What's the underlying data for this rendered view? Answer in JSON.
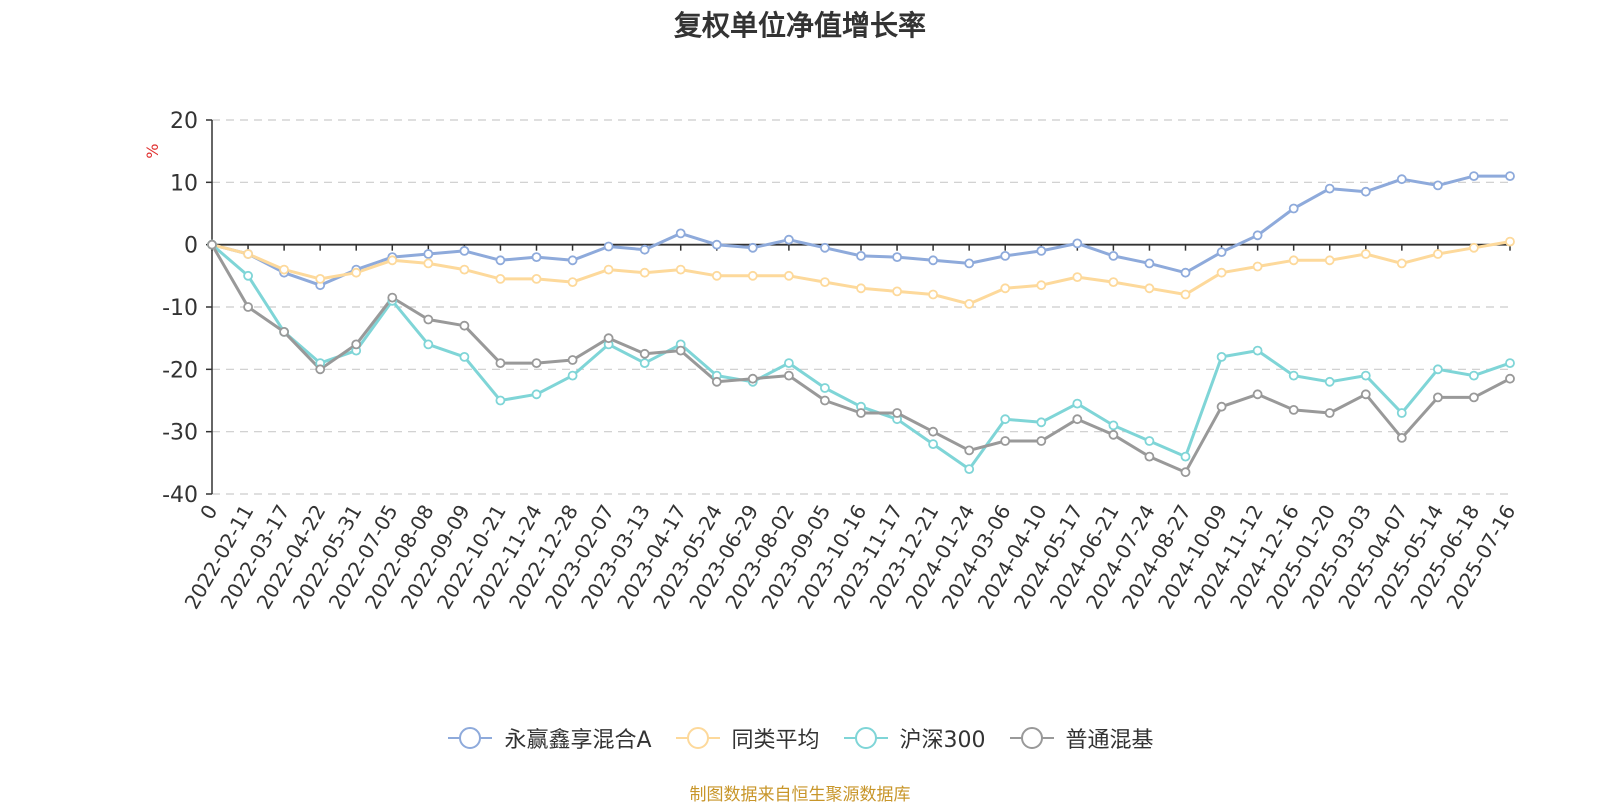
{
  "chart_data": {
    "type": "line",
    "title": "复权单位净值增长率",
    "ylabel": "%",
    "xlabel": "",
    "ylim": [
      -40,
      20
    ],
    "yticks": [
      20,
      10,
      0,
      -10,
      -20,
      -30,
      -40
    ],
    "grid": true,
    "legend_position": "bottom",
    "x_ticks": [
      "0",
      "2022-02-11",
      "2022-03-17",
      "2022-04-22",
      "2022-05-31",
      "2022-07-05",
      "2022-08-08",
      "2022-09-09",
      "2022-10-21",
      "2022-11-24",
      "2022-12-28",
      "2023-02-07",
      "2023-03-13",
      "2023-04-17",
      "2023-05-24",
      "2023-06-29",
      "2023-08-02",
      "2023-09-05",
      "2023-10-16",
      "2023-11-17",
      "2023-12-21",
      "2024-01-24",
      "2024-03-06",
      "2024-04-10",
      "2024-05-17",
      "2024-06-21",
      "2024-07-24",
      "2024-08-27",
      "2024-10-09",
      "2024-11-12",
      "2024-12-16",
      "2025-01-20",
      "2025-03-03",
      "2025-04-07",
      "2025-05-14",
      "2025-06-18",
      "2025-07-16"
    ],
    "series": [
      {
        "name": "永赢鑫享混合A",
        "color": "#8eaadb",
        "values": [
          0,
          -1.5,
          -4.5,
          -6.5,
          -4,
          -2,
          -1.5,
          -1,
          -2.5,
          -2,
          -2.5,
          -0.3,
          -0.8,
          1.8,
          0,
          -0.5,
          0.8,
          -0.5,
          -1.8,
          -2,
          -2.5,
          -3,
          -1.8,
          -1,
          0.2,
          -1.8,
          -3,
          -4.5,
          -1.2,
          1.5,
          5.8,
          9,
          8.5,
          10.5,
          9.5,
          11,
          11
        ]
      },
      {
        "name": "同类平均",
        "color": "#fdd99b",
        "values": [
          0,
          -1.5,
          -4,
          -5.5,
          -4.5,
          -2.5,
          -3,
          -4,
          -5.5,
          -5.5,
          -6,
          -4,
          -4.5,
          -4,
          -5,
          -5,
          -5,
          -6,
          -7,
          -7.5,
          -8,
          -9.5,
          -7,
          -6.5,
          -5.2,
          -6,
          -7,
          -8,
          -4.5,
          -3.5,
          -2.5,
          -2.5,
          -1.5,
          -3,
          -1.5,
          -0.5,
          0.5
        ]
      },
      {
        "name": "沪深300",
        "color": "#7fd5d7",
        "values": [
          0,
          -5,
          -14,
          -19,
          -17,
          -9,
          -16,
          -18,
          -25,
          -24,
          -21,
          -16,
          -19,
          -16,
          -21,
          -22,
          -19,
          -23,
          -26,
          -28,
          -32,
          -36,
          -28,
          -28.5,
          -25.5,
          -29,
          -31.5,
          -34,
          -18,
          -17,
          -21,
          -22,
          -21,
          -27,
          -20,
          -21,
          -19
        ]
      },
      {
        "name": "普通混基",
        "color": "#999999",
        "values": [
          0,
          -10,
          -14,
          -20,
          -16,
          -8.5,
          -12,
          -13,
          -19,
          -19,
          -18.5,
          -15,
          -17.5,
          -17,
          -22,
          -21.5,
          -21,
          -25,
          -27,
          -27,
          -30,
          -33,
          -31.5,
          -31.5,
          -28,
          -30.5,
          -34,
          -36.5,
          -26,
          -24,
          -26.5,
          -27,
          -24,
          -31,
          -24.5,
          -24.5,
          -21.5
        ]
      }
    ]
  },
  "source_note": "制图数据来自恒生聚源数据库"
}
